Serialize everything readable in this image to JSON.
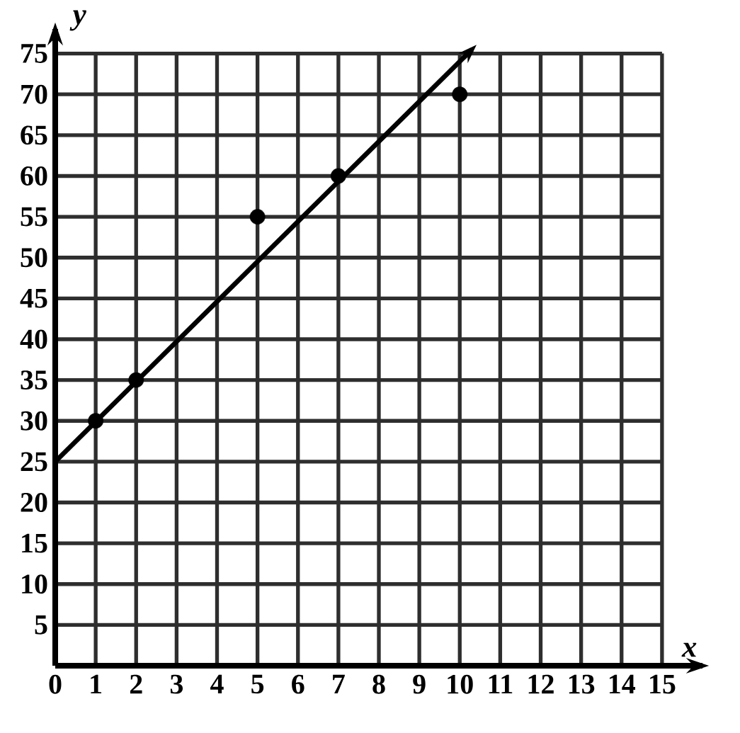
{
  "chart_data": {
    "type": "scatter",
    "xlabel": "x",
    "ylabel": "y",
    "xlim": [
      0,
      16
    ],
    "ylim": [
      0,
      78
    ],
    "xticks": [
      0,
      1,
      2,
      3,
      4,
      5,
      6,
      7,
      8,
      9,
      10,
      11,
      12,
      13,
      14,
      15
    ],
    "yticks": [
      5,
      10,
      15,
      20,
      25,
      30,
      35,
      40,
      45,
      50,
      55,
      60,
      65,
      70,
      75
    ],
    "grid": true,
    "series": [
      {
        "color": "#000000",
        "marker": "circle",
        "x": [
          1,
          2,
          5,
          7,
          10
        ],
        "values": [
          30,
          35,
          55,
          60,
          70
        ]
      },
      {
        "type": "line",
        "color": "#000000",
        "x": [
          0,
          10.3
        ],
        "values": [
          25,
          75.5
        ]
      }
    ]
  }
}
